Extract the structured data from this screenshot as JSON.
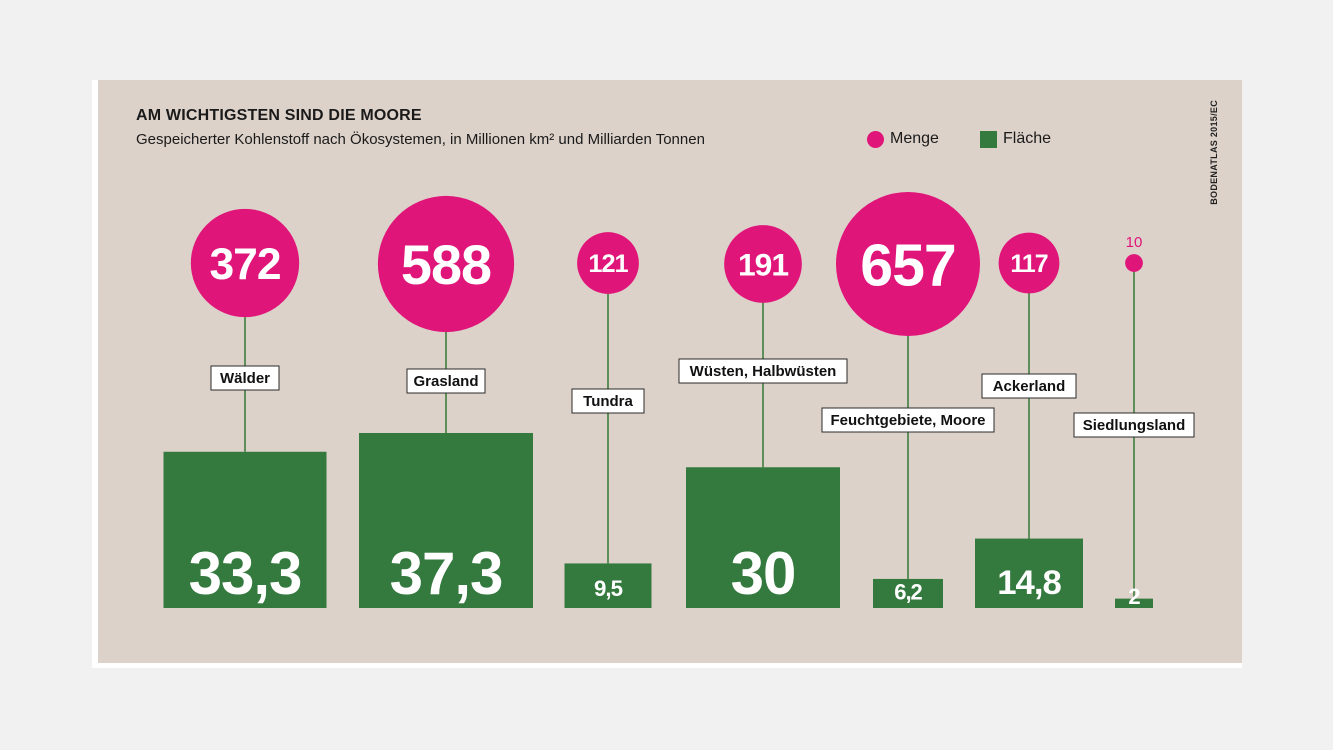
{
  "chart_data": {
    "type": "bar",
    "title": "AM WICHTIGSTEN SIND DIE MOORE",
    "subtitle": "Gespeicherter Kohlenstoff nach Ökosystemen, in Millionen km² und Milliarden Tonnen",
    "source": "BODENATLAS 2015/EC",
    "legend": [
      {
        "name": "Menge",
        "shape": "circle",
        "color": "#e0157a"
      },
      {
        "name": "Fläche",
        "shape": "square",
        "color": "#347a3f"
      }
    ],
    "categories": [
      "Wälder",
      "Grasland",
      "Tundra",
      "Wüsten, Halbwüsten",
      "Feuchtgebiete, Moore",
      "Ackerland",
      "Siedlungsland"
    ],
    "series": [
      {
        "name": "Menge",
        "values": [
          372,
          588,
          121,
          191,
          657,
          117,
          10
        ],
        "labels": [
          "372",
          "588",
          "121",
          "191",
          "657",
          "117",
          "10"
        ]
      },
      {
        "name": "Fläche",
        "values": [
          33.3,
          37.3,
          9.5,
          30,
          6.2,
          14.8,
          2
        ],
        "labels": [
          "33,3",
          "37,3",
          "9,5",
          "30",
          "6,2",
          "14,8",
          "2"
        ]
      }
    ],
    "colors": {
      "menge": "#e0157a",
      "flaeche": "#347a3f",
      "background": "#ddd2ca",
      "stem": "#5e8f5a"
    }
  }
}
